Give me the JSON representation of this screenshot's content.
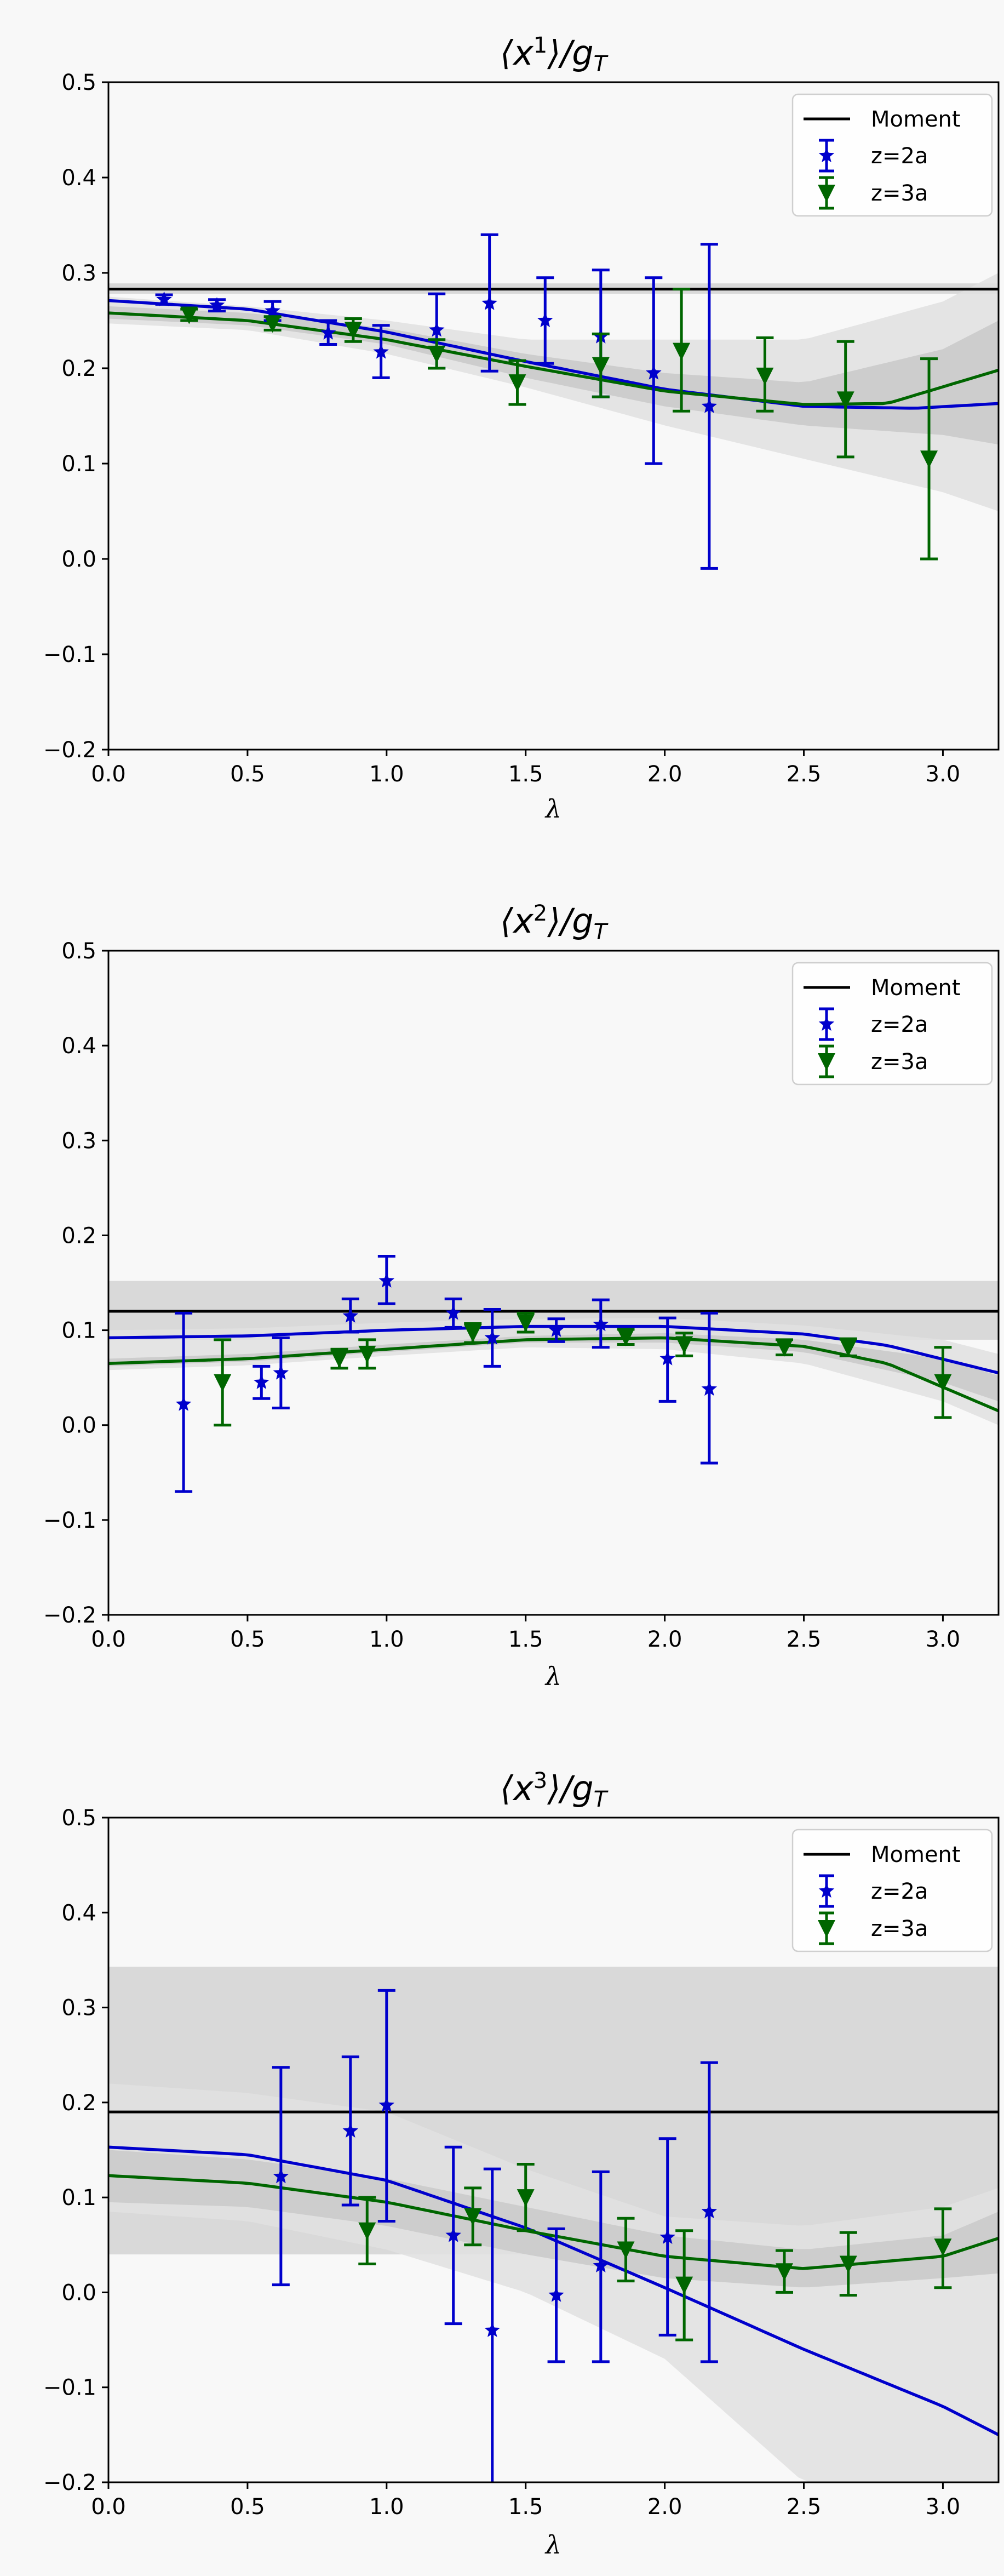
{
  "chart_data": [
    {
      "type": "scatter",
      "title_base": "⟨x",
      "title_power": "1",
      "title_tail": "⟩/g",
      "title_sub": "T",
      "xlabel": "λ",
      "ylabel": "",
      "xlim": [
        0,
        3.2
      ],
      "ylim": [
        -0.2,
        0.5
      ],
      "xticks": [
        "0.0",
        "0.5",
        "1.0",
        "1.5",
        "2.0",
        "2.5",
        "3.0"
      ],
      "yticks": [
        "−0.2",
        "−0.1",
        "0.0",
        "0.1",
        "0.2",
        "0.3",
        "0.4",
        "0.5"
      ],
      "legend": [
        "Moment",
        "z=2a",
        "z=3a"
      ],
      "moment": {
        "value": 0.283,
        "low": 0.278,
        "high": 0.289
      },
      "series": [
        {
          "name": "z=2a",
          "color": "#0000cc",
          "marker": "star",
          "points": [
            {
              "x": 0.2,
              "y": 0.272,
              "lo": 0.267,
              "hi": 0.277
            },
            {
              "x": 0.39,
              "y": 0.266,
              "lo": 0.26,
              "hi": 0.272
            },
            {
              "x": 0.59,
              "y": 0.26,
              "lo": 0.25,
              "hi": 0.27
            },
            {
              "x": 0.79,
              "y": 0.237,
              "lo": 0.225,
              "hi": 0.25
            },
            {
              "x": 0.98,
              "y": 0.217,
              "lo": 0.19,
              "hi": 0.245
            },
            {
              "x": 1.18,
              "y": 0.24,
              "lo": 0.2,
              "hi": 0.278
            },
            {
              "x": 1.37,
              "y": 0.268,
              "lo": 0.197,
              "hi": 0.34
            },
            {
              "x": 1.57,
              "y": 0.25,
              "lo": 0.205,
              "hi": 0.295
            },
            {
              "x": 1.77,
              "y": 0.233,
              "lo": 0.17,
              "hi": 0.303
            },
            {
              "x": 1.96,
              "y": 0.195,
              "lo": 0.1,
              "hi": 0.295
            },
            {
              "x": 2.16,
              "y": 0.16,
              "lo": -0.01,
              "hi": 0.33
            }
          ],
          "fit": {
            "x": [
              0,
              0.5,
              1.0,
              1.5,
              2.0,
              2.5,
              2.9,
              3.2
            ],
            "y": [
              0.271,
              0.262,
              0.238,
              0.207,
              0.178,
              0.16,
              0.158,
              0.163
            ]
          }
        },
        {
          "name": "z=3a",
          "color": "#006600",
          "marker": "triangle",
          "points": [
            {
              "x": 0.29,
              "y": 0.256,
              "lo": 0.25,
              "hi": 0.262
            },
            {
              "x": 0.59,
              "y": 0.247,
              "lo": 0.24,
              "hi": 0.254
            },
            {
              "x": 0.88,
              "y": 0.24,
              "lo": 0.228,
              "hi": 0.252
            },
            {
              "x": 1.18,
              "y": 0.215,
              "lo": 0.2,
              "hi": 0.23
            },
            {
              "x": 1.47,
              "y": 0.185,
              "lo": 0.162,
              "hi": 0.208
            },
            {
              "x": 1.77,
              "y": 0.203,
              "lo": 0.17,
              "hi": 0.236
            },
            {
              "x": 2.06,
              "y": 0.218,
              "lo": 0.155,
              "hi": 0.283
            },
            {
              "x": 2.36,
              "y": 0.192,
              "lo": 0.155,
              "hi": 0.232
            },
            {
              "x": 2.65,
              "y": 0.167,
              "lo": 0.107,
              "hi": 0.228
            },
            {
              "x": 2.95,
              "y": 0.105,
              "lo": 0.0,
              "hi": 0.21
            }
          ],
          "fit": {
            "x": [
              0,
              0.5,
              1.0,
              1.5,
              2.0,
              2.5,
              2.8,
              3.2
            ],
            "y": [
              0.258,
              0.25,
              0.23,
              0.202,
              0.176,
              0.162,
              0.163,
              0.198
            ]
          }
        }
      ],
      "bands": [
        {
          "x": [
            0,
            0.5,
            1.0,
            1.5,
            2.0,
            2.5,
            3.0,
            3.2
          ],
          "lo": [
            0.247,
            0.24,
            0.215,
            0.18,
            0.14,
            0.105,
            0.07,
            0.05
          ],
          "hi": [
            0.275,
            0.265,
            0.25,
            0.23,
            0.23,
            0.23,
            0.27,
            0.3
          ],
          "color": "#e0e0e0"
        },
        {
          "x": [
            0,
            0.5,
            1.0,
            1.5,
            2.0,
            2.5,
            3.0,
            3.2
          ],
          "lo": [
            0.252,
            0.245,
            0.225,
            0.19,
            0.16,
            0.14,
            0.13,
            0.12
          ],
          "hi": [
            0.265,
            0.258,
            0.242,
            0.215,
            0.195,
            0.185,
            0.22,
            0.25
          ],
          "color": "#c9c9c9"
        }
      ]
    },
    {
      "type": "scatter",
      "title_base": "⟨x",
      "title_power": "2",
      "title_tail": "⟩/g",
      "title_sub": "T",
      "xlabel": "λ",
      "ylabel": "",
      "xlim": [
        0,
        3.2
      ],
      "ylim": [
        -0.2,
        0.5
      ],
      "xticks": [
        "0.0",
        "0.5",
        "1.0",
        "1.5",
        "2.0",
        "2.5",
        "3.0"
      ],
      "yticks": [
        "−0.2",
        "−0.1",
        "0.0",
        "0.1",
        "0.2",
        "0.3",
        "0.4",
        "0.5"
      ],
      "legend": [
        "Moment",
        "z=2a",
        "z=3a"
      ],
      "moment": {
        "value": 0.12,
        "low": 0.09,
        "high": 0.152
      },
      "series": [
        {
          "name": "z=2a",
          "color": "#0000cc",
          "marker": "star",
          "points": [
            {
              "x": 0.27,
              "y": 0.022,
              "lo": -0.07,
              "hi": 0.118
            },
            {
              "x": 0.55,
              "y": 0.045,
              "lo": 0.028,
              "hi": 0.062
            },
            {
              "x": 0.62,
              "y": 0.055,
              "lo": 0.018,
              "hi": 0.092
            },
            {
              "x": 0.87,
              "y": 0.115,
              "lo": 0.098,
              "hi": 0.133
            },
            {
              "x": 1.0,
              "y": 0.152,
              "lo": 0.128,
              "hi": 0.178
            },
            {
              "x": 1.24,
              "y": 0.118,
              "lo": 0.103,
              "hi": 0.133
            },
            {
              "x": 1.38,
              "y": 0.092,
              "lo": 0.062,
              "hi": 0.122
            },
            {
              "x": 1.61,
              "y": 0.1,
              "lo": 0.088,
              "hi": 0.112
            },
            {
              "x": 1.77,
              "y": 0.106,
              "lo": 0.082,
              "hi": 0.132
            },
            {
              "x": 2.01,
              "y": 0.07,
              "lo": 0.025,
              "hi": 0.113
            },
            {
              "x": 2.16,
              "y": 0.038,
              "lo": -0.04,
              "hi": 0.118
            }
          ],
          "fit": {
            "x": [
              0,
              0.5,
              1.0,
              1.5,
              2.0,
              2.5,
              2.8,
              3.2
            ],
            "y": [
              0.092,
              0.094,
              0.1,
              0.104,
              0.104,
              0.096,
              0.084,
              0.055
            ]
          }
        },
        {
          "name": "z=3a",
          "color": "#006600",
          "marker": "triangle",
          "points": [
            {
              "x": 0.41,
              "y": 0.045,
              "lo": 0.0,
              "hi": 0.09
            },
            {
              "x": 0.83,
              "y": 0.07,
              "lo": 0.06,
              "hi": 0.08
            },
            {
              "x": 0.93,
              "y": 0.075,
              "lo": 0.06,
              "hi": 0.09
            },
            {
              "x": 1.31,
              "y": 0.097,
              "lo": 0.087,
              "hi": 0.107
            },
            {
              "x": 1.5,
              "y": 0.108,
              "lo": 0.098,
              "hi": 0.118
            },
            {
              "x": 1.86,
              "y": 0.093,
              "lo": 0.085,
              "hi": 0.101
            },
            {
              "x": 2.07,
              "y": 0.085,
              "lo": 0.073,
              "hi": 0.097
            },
            {
              "x": 2.43,
              "y": 0.082,
              "lo": 0.074,
              "hi": 0.09
            },
            {
              "x": 2.66,
              "y": 0.082,
              "lo": 0.073,
              "hi": 0.091
            },
            {
              "x": 3.0,
              "y": 0.045,
              "lo": 0.008,
              "hi": 0.082
            }
          ],
          "fit": {
            "x": [
              0,
              0.5,
              1.0,
              1.5,
              2.0,
              2.5,
              2.8,
              3.2
            ],
            "y": [
              0.065,
              0.07,
              0.08,
              0.09,
              0.092,
              0.083,
              0.065,
              0.015
            ]
          }
        }
      ],
      "bands": [
        {
          "x": [
            0,
            0.5,
            1.0,
            1.5,
            2.0,
            2.5,
            3.0,
            3.2
          ],
          "lo": [
            0.058,
            0.063,
            0.073,
            0.082,
            0.08,
            0.065,
            0.025,
            0.0
          ],
          "hi": [
            0.1,
            0.102,
            0.108,
            0.112,
            0.113,
            0.105,
            0.09,
            0.075
          ],
          "color": "#e0e0e0"
        },
        {
          "x": [
            0,
            0.5,
            1.0,
            1.5,
            2.0,
            2.5,
            3.0,
            3.2
          ],
          "lo": [
            0.062,
            0.067,
            0.077,
            0.087,
            0.087,
            0.077,
            0.045,
            0.025
          ],
          "hi": [
            0.07,
            0.075,
            0.085,
            0.094,
            0.097,
            0.09,
            0.07,
            0.052
          ],
          "color": "#c9c9c9"
        }
      ]
    },
    {
      "type": "scatter",
      "title_base": "⟨x",
      "title_power": "3",
      "title_tail": "⟩/g",
      "title_sub": "T",
      "xlabel": "λ",
      "ylabel": "",
      "xlim": [
        0,
        3.2
      ],
      "ylim": [
        -0.2,
        0.5
      ],
      "xticks": [
        "0.0",
        "0.5",
        "1.0",
        "1.5",
        "2.0",
        "2.5",
        "3.0"
      ],
      "yticks": [
        "−0.2",
        "−0.1",
        "0.0",
        "0.1",
        "0.2",
        "0.3",
        "0.4",
        "0.5"
      ],
      "legend": [
        "Moment",
        "z=2a",
        "z=3a"
      ],
      "moment": {
        "value": 0.19,
        "low": 0.04,
        "high": 0.343
      },
      "series": [
        {
          "name": "z=2a",
          "color": "#0000cc",
          "marker": "star",
          "points": [
            {
              "x": 0.62,
              "y": 0.122,
              "lo": 0.008,
              "hi": 0.237
            },
            {
              "x": 0.87,
              "y": 0.17,
              "lo": 0.092,
              "hi": 0.248
            },
            {
              "x": 1.0,
              "y": 0.197,
              "lo": 0.075,
              "hi": 0.318
            },
            {
              "x": 1.24,
              "y": 0.06,
              "lo": -0.033,
              "hi": 0.153
            },
            {
              "x": 1.38,
              "y": -0.04,
              "lo": -0.21,
              "hi": 0.13
            },
            {
              "x": 1.61,
              "y": -0.003,
              "lo": -0.073,
              "hi": 0.067
            },
            {
              "x": 1.77,
              "y": 0.028,
              "lo": -0.073,
              "hi": 0.127
            },
            {
              "x": 2.01,
              "y": 0.058,
              "lo": -0.045,
              "hi": 0.162
            },
            {
              "x": 2.16,
              "y": 0.085,
              "lo": -0.073,
              "hi": 0.242
            }
          ],
          "fit": {
            "x": [
              0,
              0.5,
              1.0,
              1.5,
              2.0,
              2.5,
              3.0,
              3.2
            ],
            "y": [
              0.153,
              0.145,
              0.118,
              0.068,
              0.005,
              -0.06,
              -0.12,
              -0.15
            ]
          }
        },
        {
          "name": "z=3a",
          "color": "#006600",
          "marker": "triangle",
          "points": [
            {
              "x": 0.93,
              "y": 0.065,
              "lo": 0.03,
              "hi": 0.1
            },
            {
              "x": 1.31,
              "y": 0.08,
              "lo": 0.05,
              "hi": 0.11
            },
            {
              "x": 1.5,
              "y": 0.1,
              "lo": 0.065,
              "hi": 0.135
            },
            {
              "x": 1.86,
              "y": 0.045,
              "lo": 0.012,
              "hi": 0.078
            },
            {
              "x": 2.07,
              "y": 0.008,
              "lo": -0.05,
              "hi": 0.065
            },
            {
              "x": 2.43,
              "y": 0.022,
              "lo": 0.0,
              "hi": 0.044
            },
            {
              "x": 2.66,
              "y": 0.03,
              "lo": -0.003,
              "hi": 0.063
            },
            {
              "x": 3.0,
              "y": 0.048,
              "lo": 0.005,
              "hi": 0.088
            }
          ],
          "fit": {
            "x": [
              0,
              0.5,
              1.0,
              1.5,
              2.0,
              2.5,
              3.0,
              3.2
            ],
            "y": [
              0.123,
              0.115,
              0.095,
              0.065,
              0.038,
              0.025,
              0.038,
              0.057
            ]
          }
        }
      ],
      "bands": [
        {
          "x": [
            0,
            0.5,
            1.0,
            1.5,
            2.0,
            2.5,
            3.0,
            3.2
          ],
          "lo": [
            0.085,
            0.075,
            0.045,
            0.0,
            -0.07,
            -0.2,
            -0.2,
            -0.2
          ],
          "hi": [
            0.22,
            0.21,
            0.19,
            0.13,
            0.08,
            0.07,
            0.09,
            0.11
          ],
          "color": "#e0e0e0"
        },
        {
          "x": [
            0,
            0.5,
            1.0,
            1.5,
            2.0,
            2.5,
            3.0,
            3.2
          ],
          "lo": [
            0.095,
            0.09,
            0.07,
            0.04,
            0.015,
            0.005,
            0.015,
            0.02
          ],
          "hi": [
            0.15,
            0.14,
            0.12,
            0.09,
            0.06,
            0.045,
            0.06,
            0.085
          ],
          "color": "#c9c9c9"
        }
      ]
    }
  ]
}
